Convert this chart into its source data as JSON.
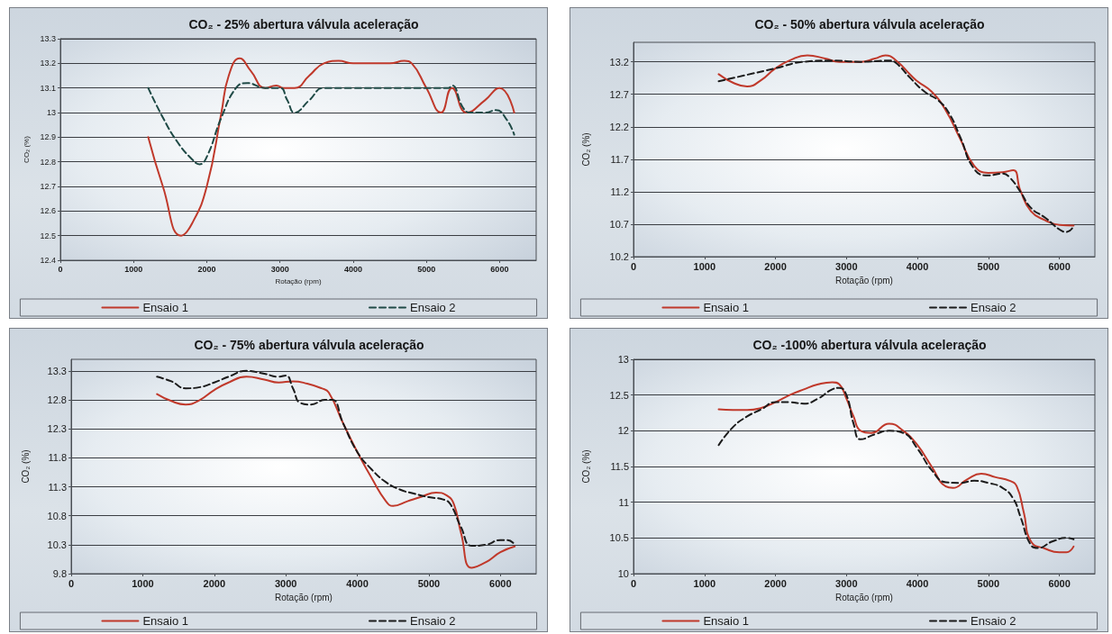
{
  "chart_data": [
    {
      "type": "line",
      "title": "CO₂ - 25% abertura válvula aceleração",
      "xlabel": "Rotação (rpm)",
      "ylabel": "CO₂ (%)",
      "xlim": [
        0,
        6500
      ],
      "xticks": [
        0,
        1000,
        2000,
        3000,
        4000,
        5000,
        6000
      ],
      "ylim": [
        12.4,
        13.3
      ],
      "yticks": [
        12.4,
        12.5,
        12.6,
        12.7,
        12.8,
        12.9,
        13,
        13.1,
        13.2,
        13.3
      ],
      "grid": "y",
      "legend": "bottom",
      "marker": "none",
      "series": [
        {
          "name": "Ensaio 1",
          "color": "#c0392b",
          "line_style": "solid",
          "x": [
            1200,
            1400,
            1650,
            1800,
            2000,
            2200,
            2300,
            2450,
            2600,
            2800,
            2950,
            3050,
            3200,
            3400,
            3600,
            3800,
            4000,
            4500,
            4700,
            4800,
            5000,
            5200,
            5350,
            5550,
            5800,
            6000,
            6200
          ],
          "values": [
            12.9,
            12.7,
            12.5,
            12.55,
            12.7,
            13.0,
            13.15,
            13.22,
            13.17,
            13.1,
            13.11,
            13.1,
            13.1,
            13.15,
            13.2,
            13.21,
            13.2,
            13.2,
            13.21,
            13.2,
            13.1,
            13.0,
            13.1,
            13.0,
            13.05,
            13.1,
            13.0
          ]
        },
        {
          "name": "Ensaio 2",
          "color": "#1f4a46",
          "line_style": "dashed",
          "x": [
            1200,
            1400,
            1600,
            1800,
            1900,
            2000,
            2200,
            2400,
            2550,
            2800,
            3000,
            3100,
            3200,
            3400,
            3600,
            4000,
            4500,
            5000,
            5300,
            5350,
            5500,
            5600,
            5800,
            5950,
            6100,
            6200
          ],
          "values": [
            13.1,
            12.98,
            12.88,
            12.81,
            12.79,
            12.82,
            12.98,
            13.1,
            13.12,
            13.1,
            13.1,
            13.05,
            13.0,
            13.05,
            13.1,
            13.1,
            13.1,
            13.1,
            13.1,
            13.11,
            13.02,
            13.0,
            13.0,
            13.01,
            12.97,
            12.91
          ]
        }
      ]
    },
    {
      "type": "line",
      "title": "CO₂ - 50% abertura válvula aceleração",
      "xlabel": "Rotação (rpm)",
      "ylabel": "CO₂ (%)",
      "xlim": [
        0,
        6500
      ],
      "xticks": [
        0,
        1000,
        2000,
        3000,
        4000,
        5000,
        6000
      ],
      "ylim": [
        10.2,
        13.5
      ],
      "yticks": [
        10.2,
        10.7,
        11.2,
        11.7,
        12.2,
        12.7,
        13.2
      ],
      "grid": "y",
      "legend": "bottom",
      "marker": "none",
      "series": [
        {
          "name": "Ensaio 1",
          "color": "#c0392b",
          "line_style": "solid",
          "x": [
            1200,
            1400,
            1600,
            1800,
            2000,
            2200,
            2450,
            2700,
            2900,
            3200,
            3400,
            3550,
            3700,
            3900,
            4000,
            4200,
            4400,
            4600,
            4800,
            5000,
            5200,
            5350,
            5450,
            5600,
            5800,
            6000,
            6200
          ],
          "values": [
            13.01,
            12.88,
            12.82,
            12.92,
            13.1,
            13.22,
            13.3,
            13.25,
            13.2,
            13.2,
            13.25,
            13.3,
            13.22,
            13.0,
            12.9,
            12.74,
            12.45,
            12.02,
            11.6,
            11.49,
            11.5,
            11.53,
            11.22,
            10.9,
            10.76,
            10.69,
            10.68
          ]
        },
        {
          "name": "Ensaio 2",
          "color": "#1b1b1b",
          "line_style": "dashed",
          "x": [
            1200,
            1600,
            2000,
            2400,
            2800,
            3200,
            3600,
            3700,
            3900,
            4100,
            4300,
            4450,
            4600,
            4800,
            5000,
            5200,
            5300,
            5450,
            5600,
            5800,
            6000,
            6100,
            6200
          ],
          "values": [
            12.9,
            13.0,
            13.1,
            13.2,
            13.22,
            13.2,
            13.22,
            13.18,
            12.95,
            12.74,
            12.6,
            12.4,
            12.05,
            11.55,
            11.45,
            11.48,
            11.42,
            11.2,
            10.95,
            10.8,
            10.62,
            10.58,
            10.67
          ]
        }
      ]
    },
    {
      "type": "line",
      "title": "CO₂ - 75% abertura válvula aceleração",
      "xlabel": "Rotação (rpm)",
      "ylabel": "CO₂ (%)",
      "xlim": [
        0,
        6500
      ],
      "xticks": [
        0,
        1000,
        2000,
        3000,
        4000,
        5000,
        6000
      ],
      "ylim": [
        9.8,
        13.5
      ],
      "yticks": [
        9.8,
        10.3,
        10.8,
        11.3,
        11.8,
        12.3,
        12.8,
        13.3
      ],
      "grid": "y",
      "legend": "bottom",
      "marker": "none",
      "series": [
        {
          "name": "Ensaio 1",
          "color": "#c0392b",
          "line_style": "solid",
          "x": [
            1200,
            1400,
            1600,
            1800,
            2000,
            2200,
            2450,
            2700,
            2900,
            3100,
            3300,
            3500,
            3600,
            3800,
            4000,
            4200,
            4400,
            4500,
            4700,
            4900,
            5100,
            5250,
            5350,
            5450,
            5600,
            5800,
            6000,
            6200
          ],
          "values": [
            12.9,
            12.78,
            12.72,
            12.8,
            12.97,
            13.1,
            13.2,
            13.15,
            13.1,
            13.12,
            13.08,
            13.0,
            12.93,
            12.4,
            11.9,
            11.45,
            11.05,
            10.97,
            11.05,
            11.13,
            11.2,
            11.15,
            11.0,
            10.5,
            9.9,
            10.0,
            10.17,
            10.27
          ]
        },
        {
          "name": "Ensaio 2",
          "color": "#1b1b1b",
          "line_style": "dashed",
          "x": [
            1200,
            1400,
            1600,
            1800,
            2000,
            2200,
            2450,
            2700,
            2900,
            3000,
            3100,
            3200,
            3350,
            3550,
            3650,
            3800,
            4000,
            4200,
            4400,
            4600,
            4800,
            5000,
            5200,
            5300,
            5450,
            5600,
            5800,
            6000,
            6100,
            6200
          ],
          "values": [
            13.2,
            13.12,
            13.0,
            13.02,
            13.1,
            13.2,
            13.3,
            13.25,
            13.2,
            13.22,
            13.0,
            12.75,
            12.72,
            12.8,
            12.8,
            12.4,
            11.9,
            11.6,
            11.38,
            11.25,
            11.18,
            11.12,
            11.08,
            11.0,
            10.6,
            10.28,
            10.3,
            10.38,
            10.38,
            10.3
          ]
        }
      ]
    },
    {
      "type": "line",
      "title": "CO₂ -100% abertura válvula aceleração",
      "xlabel": "Rotação (rpm)",
      "ylabel": "CO₂ (%)",
      "xlim": [
        0,
        6500
      ],
      "xticks": [
        0,
        1000,
        2000,
        3000,
        4000,
        5000,
        6000
      ],
      "ylim": [
        10,
        13
      ],
      "yticks": [
        10,
        10.5,
        11,
        11.5,
        12,
        12.5,
        13
      ],
      "grid": "y",
      "legend": "bottom",
      "marker": "none",
      "series": [
        {
          "name": "Ensaio 1",
          "color": "#c0392b",
          "line_style": "solid",
          "x": [
            1200,
            1400,
            1600,
            1800,
            2000,
            2200,
            2400,
            2600,
            2800,
            2900,
            3000,
            3100,
            3200,
            3350,
            3600,
            3800,
            4000,
            4200,
            4400,
            4500,
            4700,
            4900,
            5100,
            5300,
            5400,
            5500,
            5600,
            5800,
            6000,
            6100,
            6200
          ],
          "values": [
            12.3,
            12.29,
            12.29,
            12.32,
            12.4,
            12.5,
            12.58,
            12.65,
            12.68,
            12.65,
            12.45,
            12.2,
            12.0,
            11.97,
            12.1,
            12.0,
            11.8,
            11.5,
            11.22,
            11.2,
            11.32,
            11.4,
            11.35,
            11.3,
            11.22,
            10.85,
            10.45,
            10.35,
            10.3,
            10.3,
            10.38
          ]
        },
        {
          "name": "Ensaio 2",
          "color": "#1b1b1b",
          "line_style": "dashed",
          "x": [
            1200,
            1400,
            1600,
            1800,
            2000,
            2200,
            2400,
            2600,
            2800,
            2900,
            3000,
            3100,
            3200,
            3400,
            3600,
            3800,
            4000,
            4200,
            4400,
            4600,
            4800,
            5000,
            5200,
            5350,
            5450,
            5600,
            5700,
            5900,
            6100,
            6200
          ],
          "values": [
            11.8,
            12.05,
            12.2,
            12.3,
            12.4,
            12.4,
            12.38,
            12.45,
            12.58,
            12.6,
            12.5,
            12.1,
            11.88,
            11.95,
            12.0,
            11.97,
            11.75,
            11.45,
            11.28,
            11.27,
            11.3,
            11.27,
            11.2,
            11.05,
            10.8,
            10.4,
            10.36,
            10.45,
            10.5,
            10.48
          ]
        }
      ]
    }
  ]
}
